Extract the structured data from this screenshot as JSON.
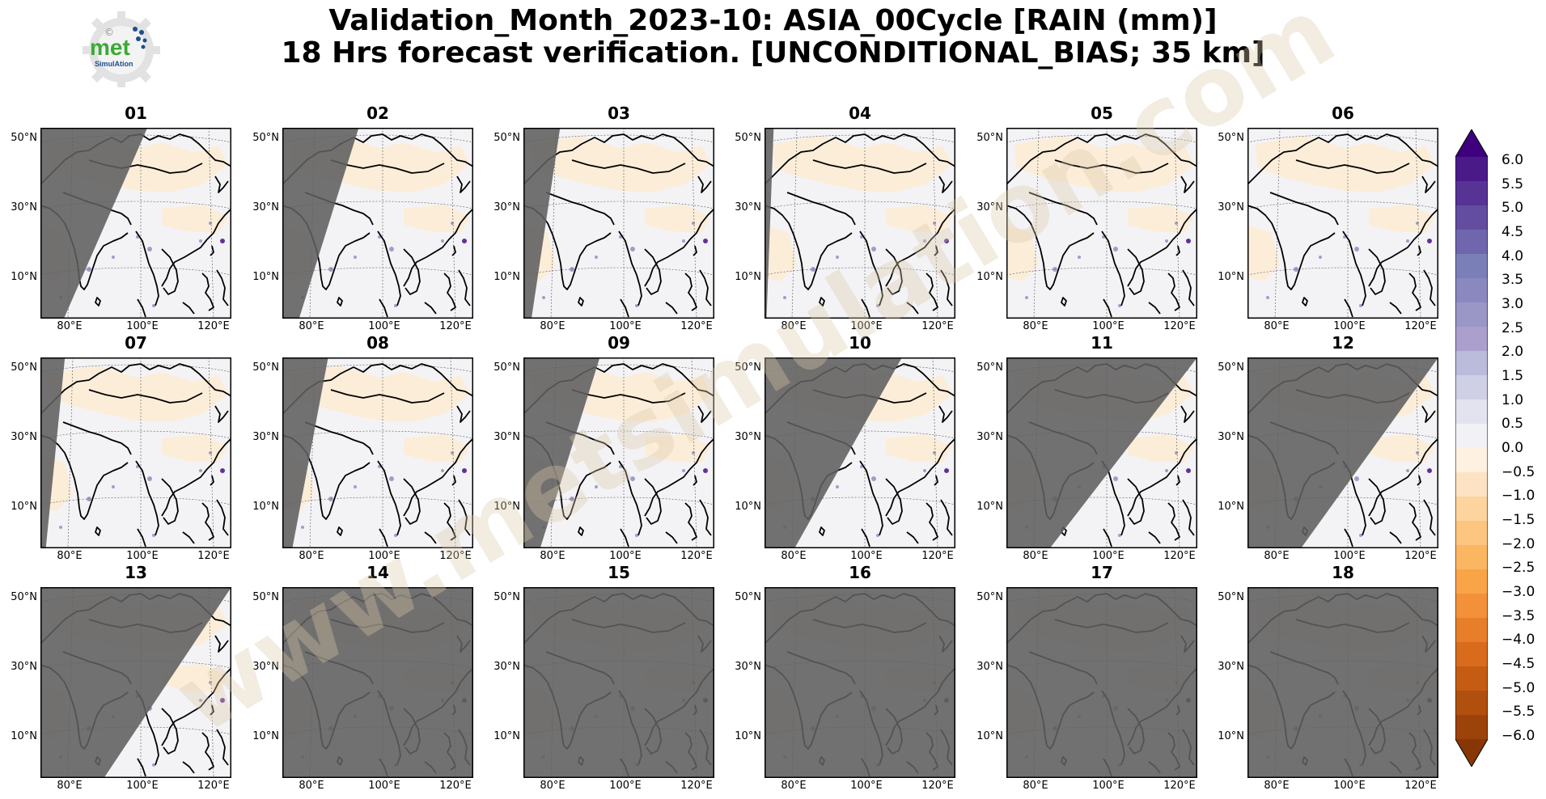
{
  "title_line1": "Validation_Month_2023-10: ASIA_00Cycle [RAIN (mm)]",
  "title_line2": "18 Hrs forecast verification. [UNCONDITIONAL_BIAS; 35 km]",
  "logo": {
    "text_main": "met",
    "text_sub": "SimulAtion",
    "symbol": "©",
    "icon": "gear-logo"
  },
  "watermark": "www.metsimulation.com",
  "panels": [
    {
      "label": "01",
      "night_fraction": 0.35
    },
    {
      "label": "02",
      "night_fraction": 0.25
    },
    {
      "label": "03",
      "night_fraction": 0.12
    },
    {
      "label": "04",
      "night_fraction": 0.03
    },
    {
      "label": "05",
      "night_fraction": 0.0
    },
    {
      "label": "06",
      "night_fraction": 0.0
    },
    {
      "label": "07",
      "night_fraction": 0.08
    },
    {
      "label": "08",
      "night_fraction": 0.15
    },
    {
      "label": "09",
      "night_fraction": 0.25
    },
    {
      "label": "10",
      "night_fraction": 0.45
    },
    {
      "label": "11",
      "night_fraction": 0.65
    },
    {
      "label": "12",
      "night_fraction": 0.8
    },
    {
      "label": "13",
      "night_fraction": 0.95
    },
    {
      "label": "14",
      "night_fraction": 1.0
    },
    {
      "label": "15",
      "night_fraction": 1.0
    },
    {
      "label": "16",
      "night_fraction": 1.0
    },
    {
      "label": "17",
      "night_fraction": 1.0
    },
    {
      "label": "18",
      "night_fraction": 1.0
    }
  ],
  "lat_ticks": [
    "50°N",
    "30°N",
    "10°N"
  ],
  "lon_ticks": [
    "80°E",
    "100°E",
    "120°E"
  ],
  "colorbar": {
    "levels": [
      "6.0",
      "5.5",
      "5.0",
      "4.5",
      "4.0",
      "3.5",
      "3.0",
      "2.5",
      "2.0",
      "1.5",
      "1.0",
      "0.5",
      "0.0",
      "−0.5",
      "−1.0",
      "−1.5",
      "−2.0",
      "−2.5",
      "−3.0",
      "−3.5",
      "−4.0",
      "−4.5",
      "−5.0",
      "−5.5",
      "−6.0"
    ],
    "positive_colors": [
      "#3f007d",
      "#4b1a89",
      "#573395",
      "#634da1",
      "#6f66ad",
      "#7b7fb7",
      "#8a88bf",
      "#9a96c6",
      "#ab9fcd",
      "#bbbcdc",
      "#cfd0e6",
      "#e3e2ef",
      "#f2f2f6"
    ],
    "negative_colors": [
      "#fef1e1",
      "#fde3c3",
      "#fdd49e",
      "#fcc680",
      "#fbb662",
      "#f9a447",
      "#f3913a",
      "#e77e2a",
      "#d86b1c",
      "#c55c14",
      "#b14f0e",
      "#9c4309",
      "#863705"
    ]
  },
  "colors": {
    "night_shade": "#5f5f5f",
    "coast": "#000000",
    "background": "#f3f3f6"
  }
}
